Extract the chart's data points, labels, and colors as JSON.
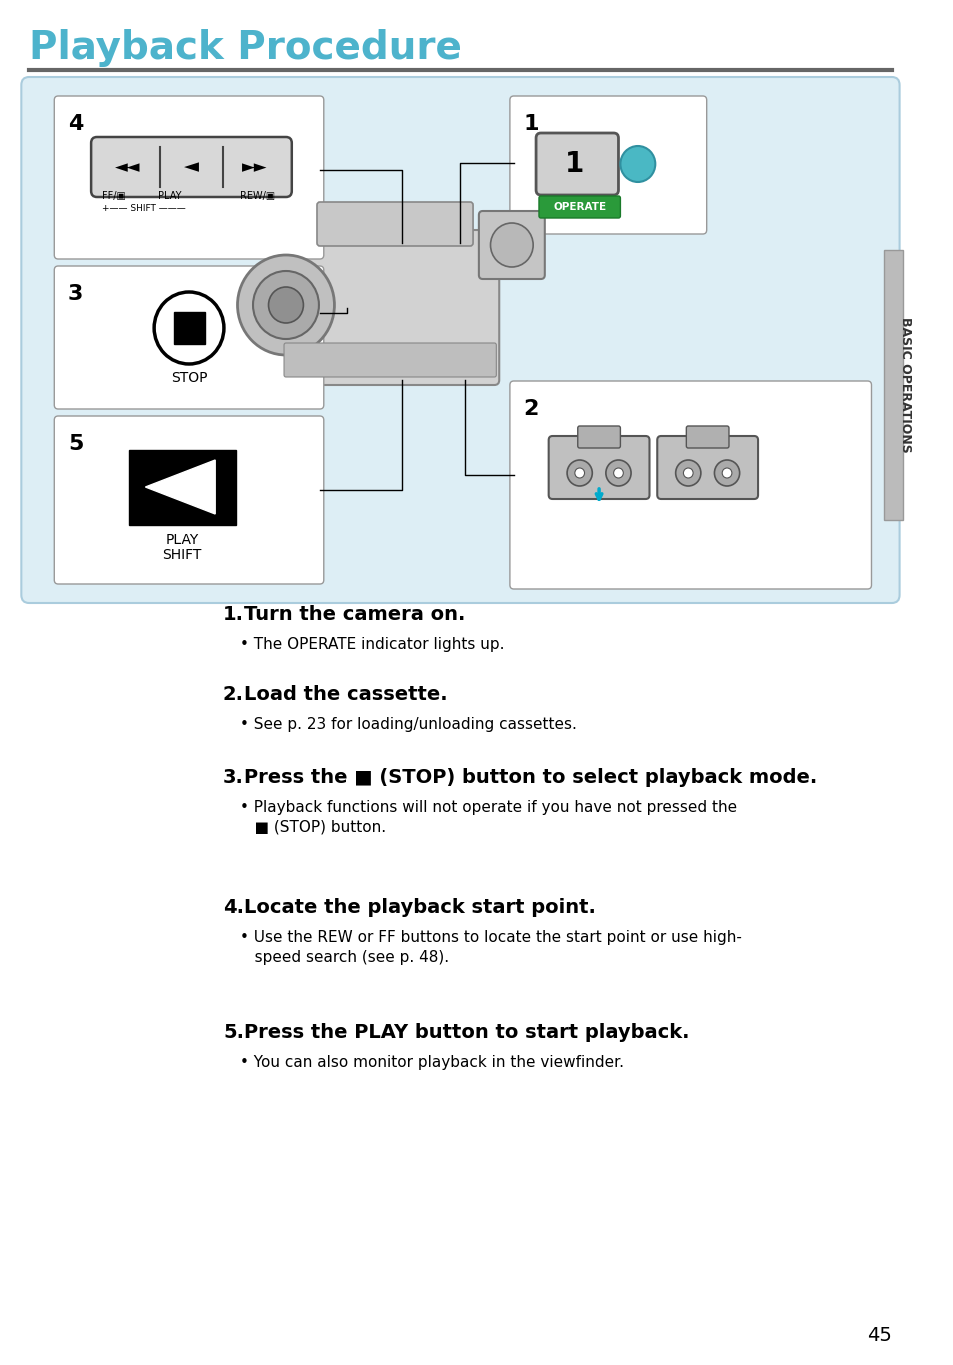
{
  "title": "Playback Procedure",
  "title_color": "#4db3cc",
  "bg_color": "#ffffff",
  "diagram_bg": "#ddeef5",
  "diagram_border": "#aaccdd",
  "page_number": "45",
  "sidebar_text": "BASIC OPERATIONS",
  "steps": [
    {
      "num": "1",
      "heading": "Turn the camera on.",
      "bullet": "The OPERATE indicator lights up."
    },
    {
      "num": "2",
      "heading": "Load the cassette.",
      "bullet": "See p. 23 for loading/unloading cassettes."
    },
    {
      "num": "3",
      "heading": "Press the ■ (STOP) button to select playback mode.",
      "bullet": "Playback functions will not operate if you have not pressed the\n    ■ (STOP) button."
    },
    {
      "num": "4",
      "heading": "Locate the playback start point.",
      "bullet": "Use the REW or FF buttons to locate the start point or use high-\n    speed search (see p. 48)."
    },
    {
      "num": "5",
      "heading": "Press the PLAY button to start playback.",
      "bullet": "You can also monitor playback in the viewfinder."
    }
  ]
}
